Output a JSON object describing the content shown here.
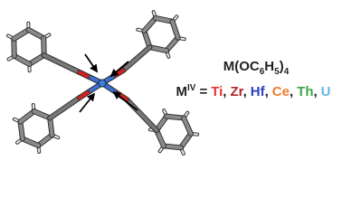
{
  "formula": {
    "parts": [
      "M(OC",
      "6",
      "H",
      "5",
      ")",
      "4"
    ]
  },
  "metals": {
    "symbol": "M",
    "oxidation_state": "IV",
    "equals": "=",
    "separator": ",",
    "elements": [
      {
        "name": "Ti",
        "color": "#e8322a"
      },
      {
        "name": "Zr",
        "color": "#b3262b"
      },
      {
        "name": "Hf",
        "color": "#2b3fc4"
      },
      {
        "name": "Ce",
        "color": "#f07a32"
      },
      {
        "name": "Th",
        "color": "#3ea446"
      },
      {
        "name": "U",
        "color": "#5fb6e6"
      }
    ]
  }
}
